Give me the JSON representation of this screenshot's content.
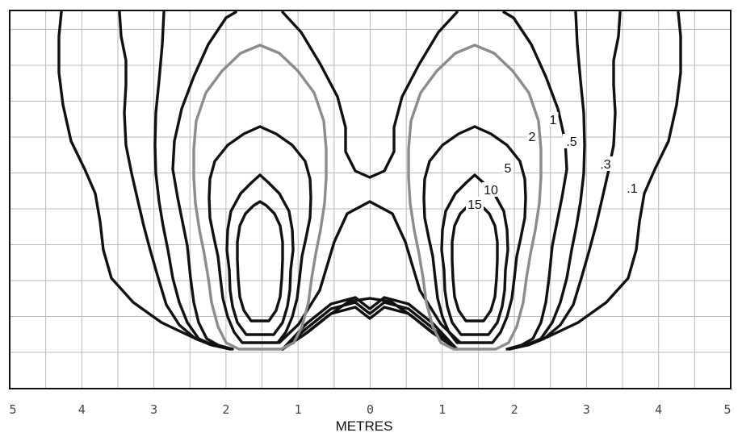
{
  "chart_data": {
    "type": "contour",
    "xlabel": "METRES",
    "x_ticks": [
      "5",
      "4",
      "3",
      "2",
      "1",
      "0",
      "1",
      "2",
      "3",
      "4",
      "5"
    ],
    "xlim": [
      -5,
      5
    ],
    "grid": true,
    "contour_levels": [
      {
        "label": ".1",
        "color": "#111111"
      },
      {
        "label": ".3",
        "color": "#111111"
      },
      {
        "label": ".5",
        "color": "#111111"
      },
      {
        "label": "1",
        "color": "#111111"
      },
      {
        "label": "2",
        "color": "#8c8c8c"
      },
      {
        "label": "5",
        "color": "#111111"
      },
      {
        "label": "10",
        "color": "#111111"
      },
      {
        "label": "15",
        "color": "#111111"
      }
    ]
  }
}
